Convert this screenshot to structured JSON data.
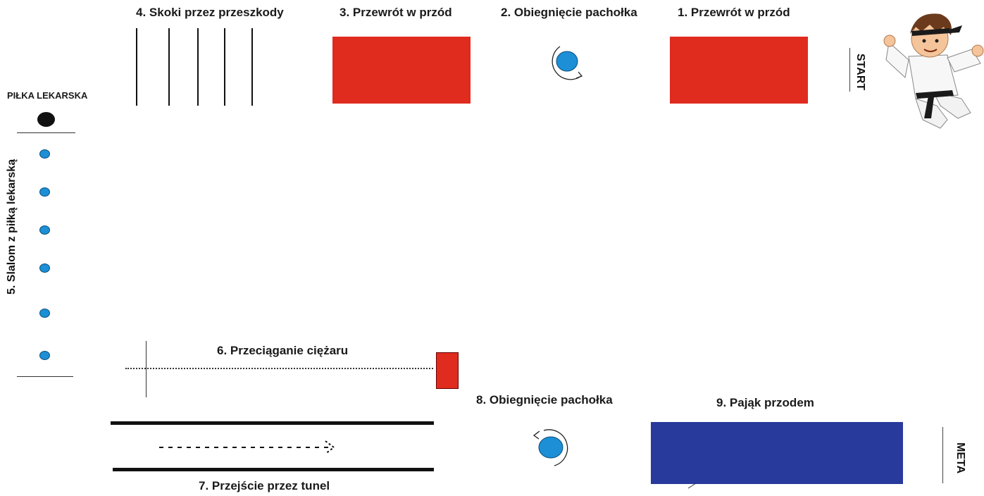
{
  "stations": {
    "s1": "1. Przewrót w przód",
    "s2": "2. Obiegnięcie pachołka",
    "s3": "3. Przewrót w przód",
    "s4": "4. Skoki przez przeszkody",
    "s5": "5. Slalom z piłką lekarską",
    "s6": "6. Przeciąganie ciężaru",
    "s7": "7. Przejście przez tunel",
    "s8": "8. Obiegnięcie pachołka",
    "s9": "9. Pająk przodem"
  },
  "labels": {
    "start": "START",
    "meta": "META",
    "medicine_ball": "PIŁKA LEKARSKA"
  },
  "colors": {
    "mat_red": "#e02b1f",
    "mat_blue": "#283a9c",
    "cone_blue": "#1c8fd6"
  },
  "icons": {
    "mascot": "karate-kid-icon",
    "cone": "cone-icon",
    "ball": "medicine-ball-icon"
  }
}
